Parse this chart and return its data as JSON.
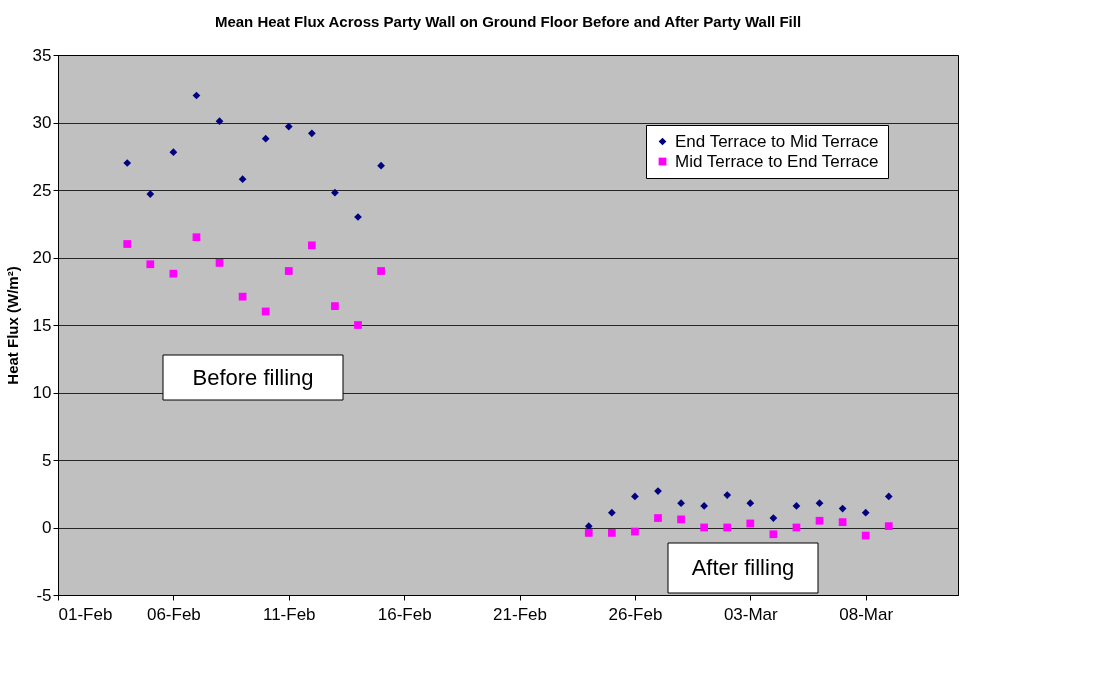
{
  "chart_data": {
    "type": "scatter",
    "title": "Mean Heat Flux Across Party Wall on Ground Floor Before and After Party Wall Fill",
    "ylabel": "Heat Flux (W/m²)",
    "x": [
      "--02-04",
      "--02-05",
      "--02-06",
      "--02-07",
      "--02-08",
      "--02-09",
      "--02-10",
      "--02-11",
      "--02-12",
      "--02-13",
      "--02-14",
      "--02-15",
      "--02-24",
      "--02-25",
      "--02-26",
      "--02-27",
      "--02-28",
      "--03-01",
      "--03-02",
      "--03-03",
      "--03-04",
      "--03-05",
      "--03-06",
      "--03-07",
      "--03-08",
      "--03-09"
    ],
    "series": [
      {
        "name": "End Terrace to Mid Terrace",
        "color": "#000080",
        "marker": "diamond",
        "values": [
          27.0,
          24.7,
          27.8,
          32.0,
          30.1,
          25.8,
          28.8,
          29.7,
          29.2,
          24.8,
          23.0,
          26.8,
          0.1,
          1.1,
          2.3,
          2.7,
          1.8,
          1.6,
          2.4,
          1.8,
          0.7,
          1.6,
          1.8,
          1.4,
          1.1,
          2.3
        ]
      },
      {
        "name": "Mid Terrace to End Terrace",
        "color": "#ff00ff",
        "marker": "square",
        "values": [
          21.0,
          19.5,
          18.8,
          21.5,
          19.6,
          17.1,
          16.0,
          19.0,
          20.9,
          16.4,
          15.0,
          19.0,
          -0.4,
          -0.4,
          -0.3,
          0.7,
          0.6,
          0.0,
          0.0,
          0.3,
          -0.5,
          0.0,
          0.5,
          0.4,
          -0.6,
          0.1
        ]
      }
    ],
    "xlim": [
      "--02-01",
      "--03-12"
    ],
    "xticks": [
      {
        "value": "--02-01",
        "label": "01-Feb"
      },
      {
        "value": "--02-06",
        "label": "06-Feb"
      },
      {
        "value": "--02-11",
        "label": "11-Feb"
      },
      {
        "value": "--02-16",
        "label": "16-Feb"
      },
      {
        "value": "--02-21",
        "label": "21-Feb"
      },
      {
        "value": "--02-26",
        "label": "26-Feb"
      },
      {
        "value": "--03-03",
        "label": "03-Mar"
      },
      {
        "value": "--03-08",
        "label": "08-Mar"
      }
    ],
    "ylim": [
      -5,
      35
    ],
    "yticks": [
      -5,
      0,
      5,
      10,
      15,
      20,
      25,
      30,
      35
    ],
    "grid": "y",
    "legend": "top right",
    "annotations": [
      "Before filling",
      "After filling"
    ]
  }
}
